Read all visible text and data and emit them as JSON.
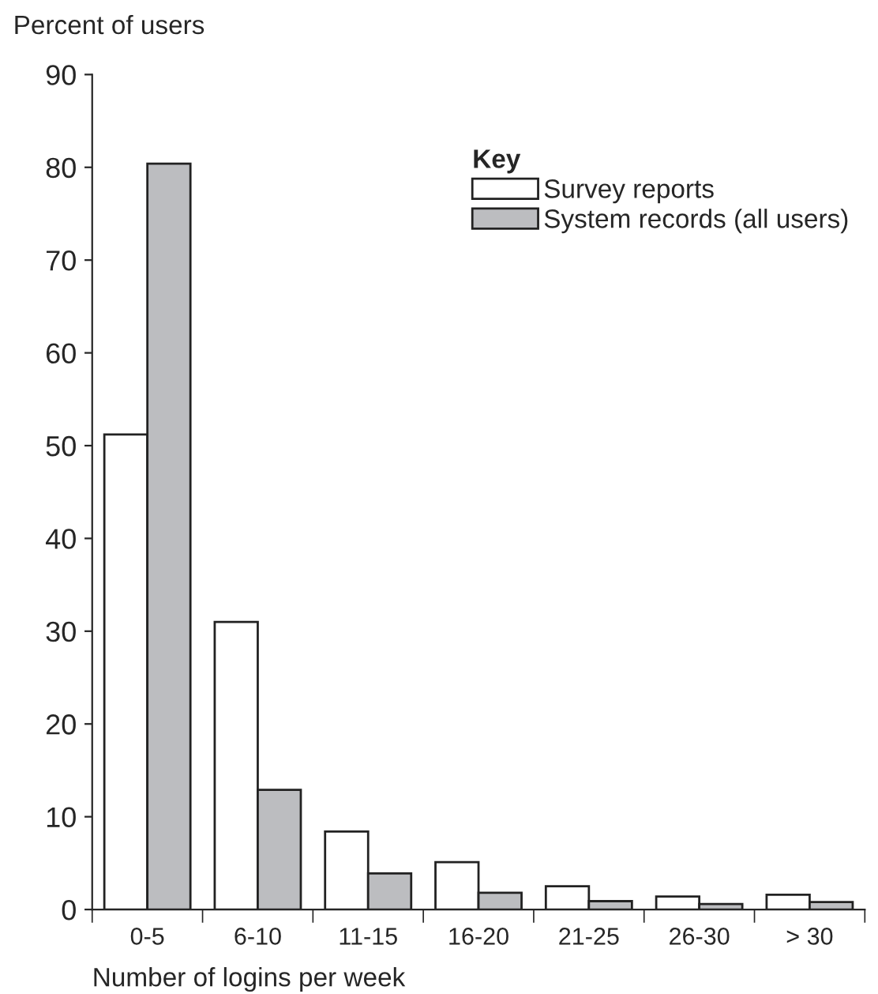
{
  "chart_data": {
    "type": "bar",
    "ylabel": "Percent of users",
    "xlabel": "Number of logins per week",
    "categories": [
      "0-5",
      "6-10",
      "11-15",
      "16-20",
      "21-25",
      "26-30",
      "> 30"
    ],
    "series": [
      {
        "name": "Survey reports",
        "color": "#ffffff",
        "values": [
          51.2,
          31.0,
          8.4,
          5.1,
          2.5,
          1.4,
          1.6
        ]
      },
      {
        "name": "System records (all users)",
        "color": "#bcbdc0",
        "values": [
          80.4,
          12.9,
          3.9,
          1.8,
          0.9,
          0.6,
          0.8
        ]
      }
    ],
    "legend_title": "Key",
    "legend": "top right",
    "ylim": [
      0,
      90
    ],
    "yticks": [
      0,
      10,
      20,
      30,
      40,
      50,
      60,
      70,
      80,
      90
    ],
    "grid": false
  }
}
